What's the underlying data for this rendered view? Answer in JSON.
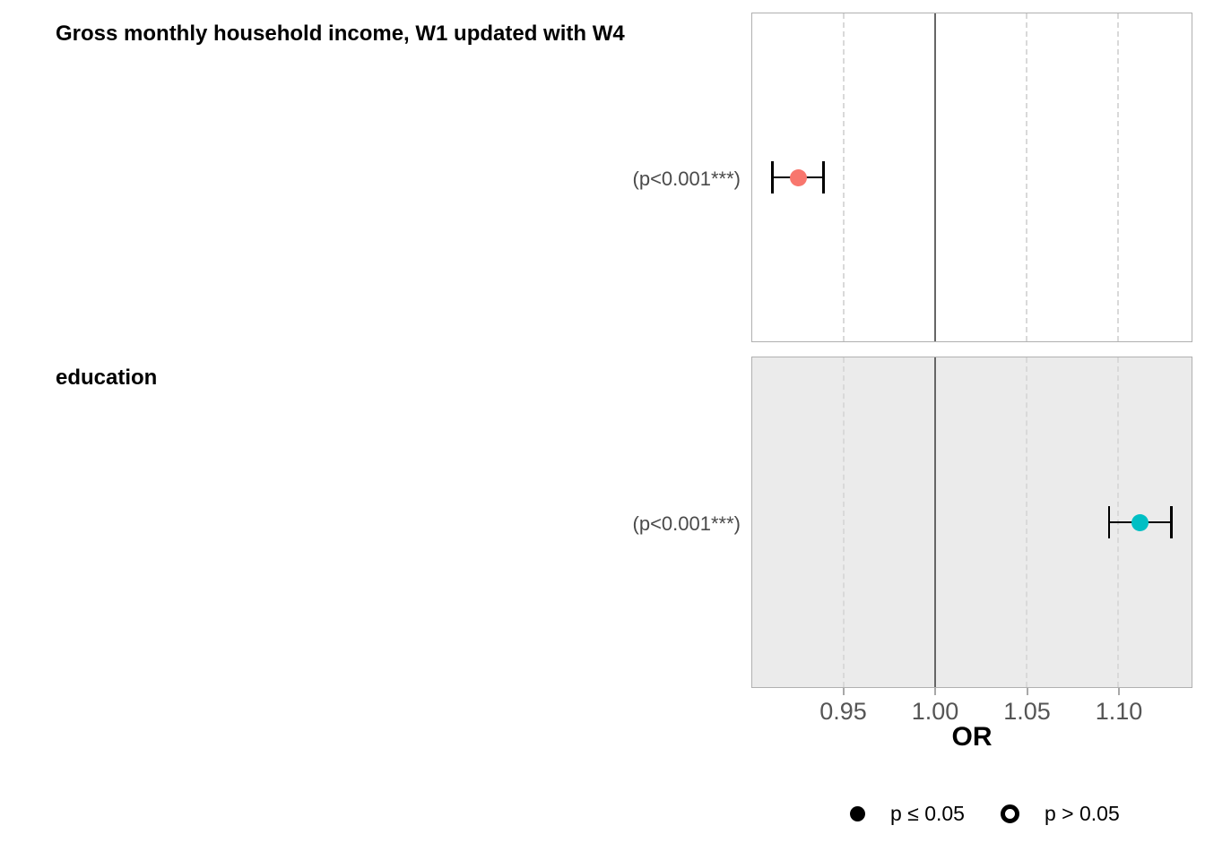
{
  "chart_data": {
    "type": "scatter",
    "subtype": "forest-plot-odds-ratios",
    "xlabel": "OR",
    "xlim": [
      0.9,
      1.14
    ],
    "x_ticks": [
      0.95,
      1.0,
      1.05,
      1.1
    ],
    "x_tick_labels": [
      "0.95",
      "1.00",
      "1.05",
      "1.10"
    ],
    "reference_line": 1.0,
    "grid": "vertical dashed gridlines at x ticks, solid reference line at OR = 1.00",
    "legend_position": "bottom",
    "facets": [
      {
        "label": "Gross monthly household income, W1 updated with W4",
        "p_label": "(p<0.001***)",
        "or": 0.925,
        "ci_low": 0.911,
        "ci_high": 0.939,
        "point_color": "#F8766D",
        "panel_bg": "#ffffff"
      },
      {
        "label": "education",
        "p_label": "(p<0.001***)",
        "or": 1.112,
        "ci_low": 1.095,
        "ci_high": 1.129,
        "point_color": "#00BFC4",
        "panel_bg": "#ebebeb"
      }
    ],
    "legend": [
      {
        "label": "p ≤ 0.05",
        "marker": "filled-circle",
        "color": "#000000"
      },
      {
        "label": "p > 0.05",
        "marker": "open-circle",
        "color": "#000000"
      }
    ]
  },
  "colors": {
    "reference_line": "#666666",
    "gridline": "#d9d9d9",
    "panel_border": "#b0b0b0",
    "axis_text": "#555555",
    "p_label_text": "#4a4a4a",
    "errorbar": "#000000"
  }
}
